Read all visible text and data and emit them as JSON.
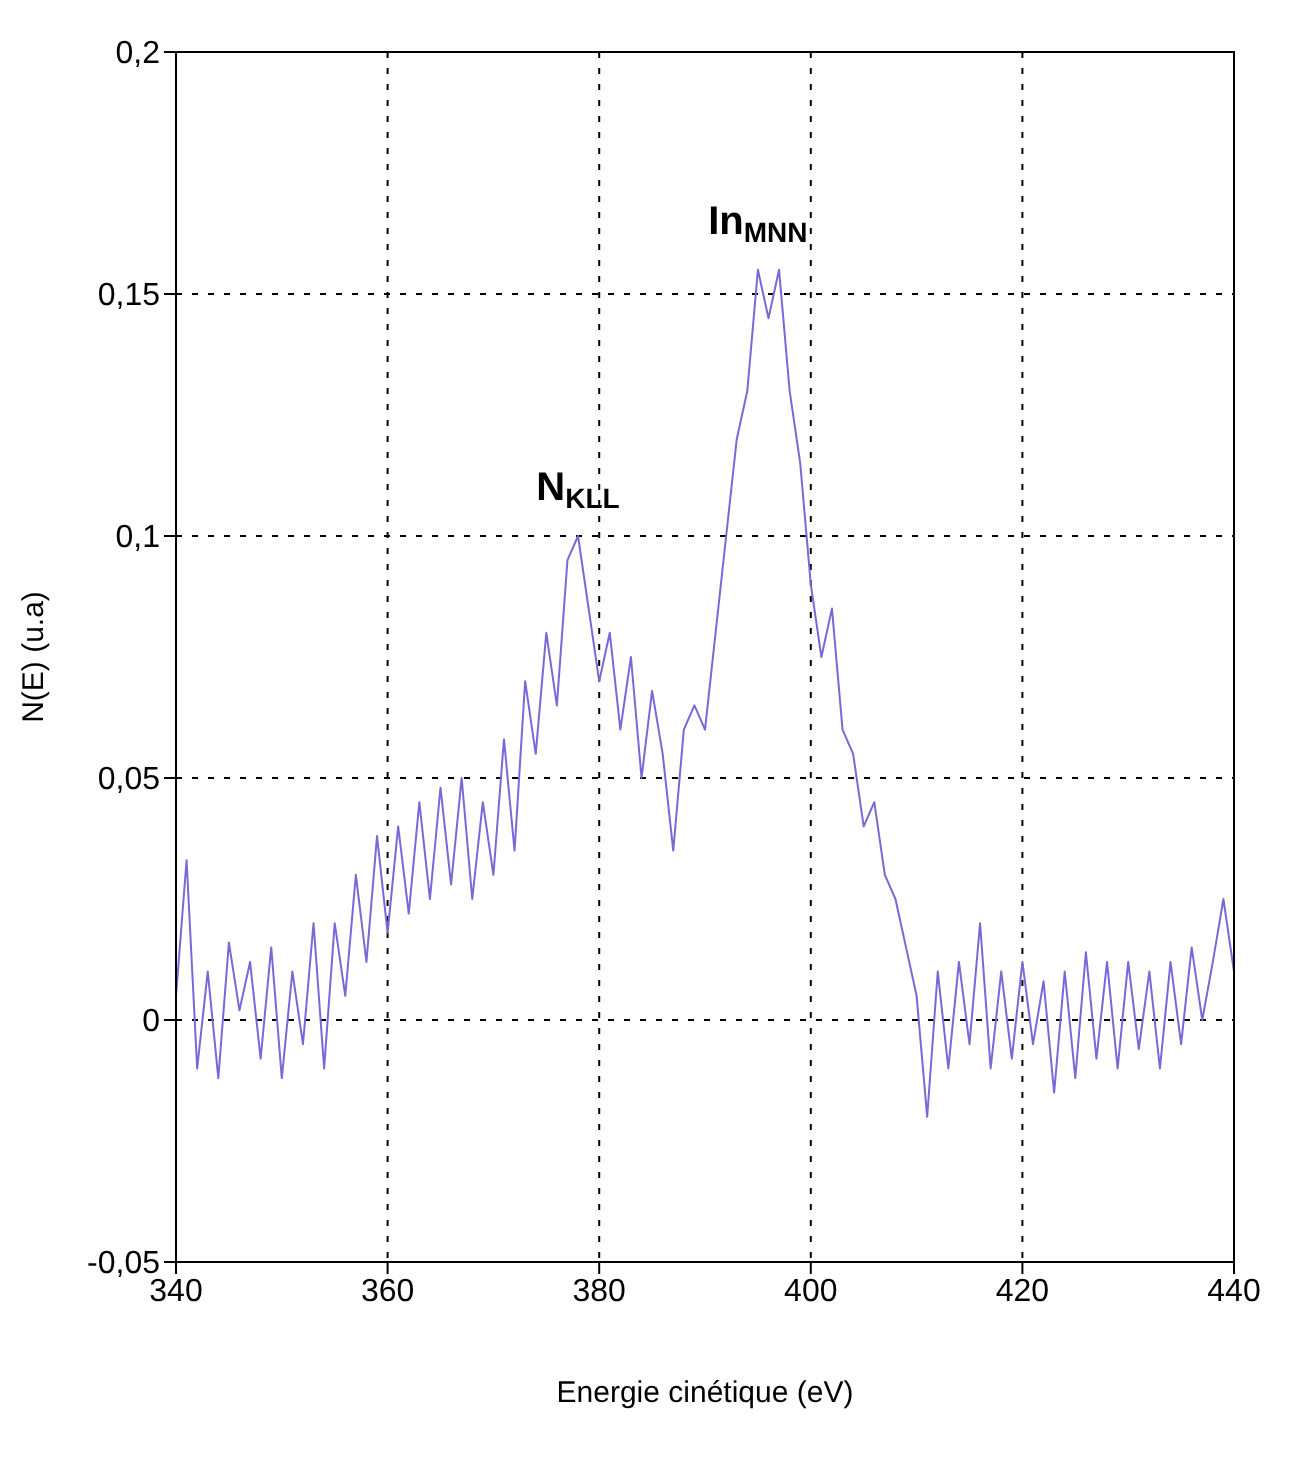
{
  "chart_data": {
    "type": "line",
    "xlabel": "Energie cinétique (eV)",
    "ylabel": "N(E) (u.a)",
    "x": [
      340,
      341,
      342,
      343,
      344,
      345,
      346,
      347,
      348,
      349,
      350,
      351,
      352,
      353,
      354,
      355,
      356,
      357,
      358,
      359,
      360,
      361,
      362,
      363,
      364,
      365,
      366,
      367,
      368,
      369,
      370,
      371,
      372,
      373,
      374,
      375,
      376,
      377,
      378,
      379,
      380,
      381,
      382,
      383,
      384,
      385,
      386,
      387,
      388,
      389,
      390,
      391,
      392,
      393,
      394,
      395,
      396,
      397,
      398,
      399,
      400,
      401,
      402,
      403,
      404,
      405,
      406,
      407,
      408,
      409,
      410,
      411,
      412,
      413,
      414,
      415,
      416,
      417,
      418,
      419,
      420,
      421,
      422,
      423,
      424,
      425,
      426,
      427,
      428,
      429,
      430,
      431,
      432,
      433,
      434,
      435,
      436,
      437,
      438,
      439,
      440
    ],
    "series": [
      {
        "color": "#7b68d8",
        "values": [
          0.005,
          0.033,
          -0.01,
          0.01,
          -0.012,
          0.016,
          0.002,
          0.012,
          -0.008,
          0.015,
          -0.012,
          0.01,
          -0.005,
          0.02,
          -0.01,
          0.02,
          0.005,
          0.03,
          0.012,
          0.038,
          0.018,
          0.04,
          0.022,
          0.045,
          0.025,
          0.048,
          0.028,
          0.05,
          0.025,
          0.045,
          0.03,
          0.058,
          0.035,
          0.07,
          0.055,
          0.08,
          0.065,
          0.095,
          0.1,
          0.085,
          0.07,
          0.08,
          0.06,
          0.075,
          0.05,
          0.068,
          0.055,
          0.035,
          0.06,
          0.065,
          0.06,
          0.08,
          0.1,
          0.12,
          0.13,
          0.155,
          0.145,
          0.155,
          0.13,
          0.115,
          0.09,
          0.075,
          0.085,
          0.06,
          0.055,
          0.04,
          0.045,
          0.03,
          0.025,
          0.015,
          0.005,
          -0.02,
          0.01,
          -0.01,
          0.012,
          -0.005,
          0.02,
          -0.01,
          0.01,
          -0.008,
          0.012,
          -0.005,
          0.008,
          -0.015,
          0.01,
          -0.012,
          0.014,
          -0.008,
          0.012,
          -0.01,
          0.012,
          -0.006,
          0.01,
          -0.01,
          0.012,
          -0.005,
          0.015,
          0,
          0.012,
          0.025,
          0.01
        ]
      }
    ],
    "xlim": [
      340,
      440
    ],
    "xticks": [
      340,
      360,
      380,
      400,
      420,
      440
    ],
    "ylim": [
      -0.05,
      0.2
    ],
    "yticks": [
      {
        "value": -0.05,
        "label": "-0,05"
      },
      {
        "value": 0,
        "label": "0"
      },
      {
        "value": 0.05,
        "label": "0,05"
      },
      {
        "value": 0.1,
        "label": "0,1"
      },
      {
        "value": 0.15,
        "label": "0,15"
      },
      {
        "value": 0.2,
        "label": "0,2"
      }
    ],
    "grid": true,
    "marker": "none",
    "line_style": "solid",
    "legend": false,
    "annotations": [
      {
        "text": "N$_{KLL}$",
        "x": 378,
        "y": 0.1
      },
      {
        "text": "In$_{MNN}$",
        "x": 395,
        "y": 0.155
      }
    ]
  }
}
